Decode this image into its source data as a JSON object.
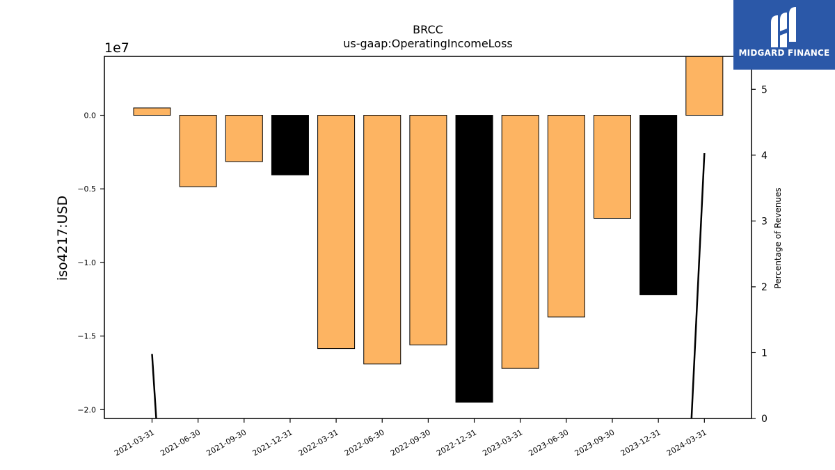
{
  "logo": {
    "text": "MIDGARD FINANCE",
    "icon": "midgard-logo-icon",
    "background": "#2b58a8"
  },
  "chart_data": {
    "type": "bar",
    "title": "BRCC",
    "subtitle": "us-gaap:OperatingIncomeLoss",
    "ylabel": "iso4217:USD",
    "y_offset_label": "1e7",
    "y2label": "Percentage of Revenues",
    "ylim": [
      -20600000,
      4000000
    ],
    "y2lim": [
      0,
      5.5
    ],
    "grid": false,
    "legend": "none",
    "y_ticks": [
      {
        "value": 0,
        "label": "0.0"
      },
      {
        "value": -5000000,
        "label": "−0.5"
      },
      {
        "value": -10000000,
        "label": "−1.0"
      },
      {
        "value": -15000000,
        "label": "−1.5"
      },
      {
        "value": -20000000,
        "label": "−2.0"
      }
    ],
    "y2_ticks": [
      {
        "value": 0,
        "label": "0"
      },
      {
        "value": 1,
        "label": "1"
      },
      {
        "value": 2,
        "label": "2"
      },
      {
        "value": 3,
        "label": "3"
      },
      {
        "value": 4,
        "label": "4"
      },
      {
        "value": 5,
        "label": "5"
      }
    ],
    "categories": [
      "2021-03-31",
      "2021-06-30",
      "2021-09-30",
      "2021-12-31",
      "2022-03-31",
      "2022-06-30",
      "2022-09-30",
      "2022-12-31",
      "2023-03-31",
      "2023-06-30",
      "2023-09-30",
      "2023-12-31",
      "2024-03-31"
    ],
    "series": [
      {
        "values": [
          500000,
          -4850000,
          -3150000,
          -4050000,
          -15850000,
          -16900000,
          -15600000,
          -19500000,
          -17200000,
          -13700000,
          -7000000,
          -12200000,
          4000000
        ],
        "colors": [
          "#fdb462",
          "#fdb462",
          "#fdb462",
          "#000000",
          "#fdb462",
          "#fdb462",
          "#fdb462",
          "#000000",
          "#fdb462",
          "#fdb462",
          "#fdb462",
          "#000000",
          "#fdb462"
        ]
      }
    ],
    "line_series": {
      "axis": "right",
      "color": "#000000",
      "segments": [
        [
          {
            "x": 0.0,
            "y": 0.98
          },
          {
            "x": 0.09,
            "y": 0.0
          }
        ],
        [
          {
            "x": 11.72,
            "y": 0.0
          },
          {
            "x": 12.0,
            "y": 4.03
          }
        ]
      ]
    }
  }
}
